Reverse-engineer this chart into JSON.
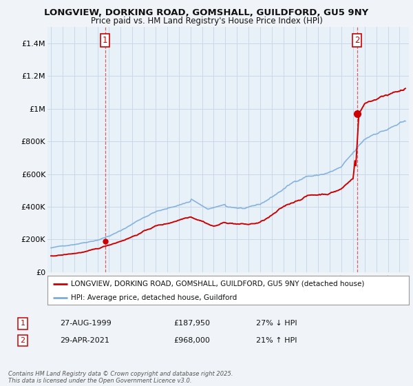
{
  "title_line1": "LONGVIEW, DORKING ROAD, GOMSHALL, GUILDFORD, GU5 9NY",
  "title_line2": "Price paid vs. HM Land Registry's House Price Index (HPI)",
  "legend_line1": "LONGVIEW, DORKING ROAD, GOMSHALL, GUILDFORD, GU5 9NY (detached house)",
  "legend_line2": "HPI: Average price, detached house, Guildford",
  "transaction1_label": "1",
  "transaction1_date": "27-AUG-1999",
  "transaction1_price": "£187,950",
  "transaction1_hpi": "27% ↓ HPI",
  "transaction2_label": "2",
  "transaction2_date": "29-APR-2021",
  "transaction2_price": "£968,000",
  "transaction2_hpi": "21% ↑ HPI",
  "footnote": "Contains HM Land Registry data © Crown copyright and database right 2025.\nThis data is licensed under the Open Government Licence v3.0.",
  "property_color": "#cc0000",
  "hpi_color": "#7aaddb",
  "background_color": "#f0f4f8",
  "plot_bg_color": "#e8f0f8",
  "grid_color": "#c8d8e8",
  "transaction1_x": 1999.65,
  "transaction1_y": 187950,
  "transaction2_x": 2021.33,
  "transaction2_y": 968000,
  "ylim_max": 1500000,
  "yticks": [
    0,
    200000,
    400000,
    600000,
    800000,
    1000000,
    1200000,
    1400000
  ],
  "ytick_labels": [
    "£0",
    "£200K",
    "£400K",
    "£600K",
    "£800K",
    "£1M",
    "£1.2M",
    "£1.4M"
  ],
  "xlim_min": 1994.7,
  "xlim_max": 2025.8
}
